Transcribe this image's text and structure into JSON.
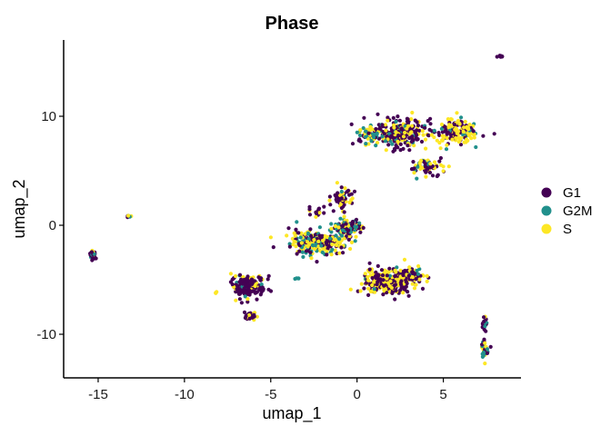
{
  "chart_data": {
    "type": "scatter",
    "title": "Phase",
    "xlabel": "umap_1",
    "ylabel": "umap_2",
    "xlim": [
      -17,
      9.5
    ],
    "ylim": [
      -14,
      17
    ],
    "x_ticks": [
      -15,
      -10,
      -5,
      0,
      5
    ],
    "x_tick_labels": [
      "-15",
      "-10",
      "-5",
      "0",
      "5"
    ],
    "y_ticks": [
      -10,
      0,
      10
    ],
    "y_tick_labels": [
      "-10",
      "0",
      "10"
    ],
    "grid": false,
    "legend_position": "right",
    "series": [
      {
        "name": "G1",
        "color": "#440154"
      },
      {
        "name": "G2M",
        "color": "#21908C"
      },
      {
        "name": "S",
        "color": "#FDE725"
      }
    ],
    "clusters": [
      {
        "center": [
          8.3,
          15.5
        ],
        "spread": [
          0.15,
          0.12
        ],
        "count": 8,
        "mix": [
          1,
          0,
          0
        ]
      },
      {
        "center": [
          2.4,
          8.5
        ],
        "spread": [
          1.3,
          1.1
        ],
        "count": 260,
        "mix": [
          0.55,
          0.12,
          0.33
        ]
      },
      {
        "center": [
          5.6,
          8.6
        ],
        "spread": [
          1.2,
          0.9
        ],
        "count": 180,
        "mix": [
          0.35,
          0.1,
          0.55
        ]
      },
      {
        "center": [
          0.6,
          8.2
        ],
        "spread": [
          0.7,
          0.7
        ],
        "count": 60,
        "mix": [
          0.3,
          0.35,
          0.35
        ]
      },
      {
        "center": [
          4.0,
          5.5
        ],
        "spread": [
          0.8,
          0.6
        ],
        "count": 70,
        "mix": [
          0.5,
          0.1,
          0.4
        ]
      },
      {
        "center": [
          -13.2,
          0.8
        ],
        "spread": [
          0.15,
          0.1
        ],
        "count": 8,
        "mix": [
          0.4,
          0.2,
          0.4
        ]
      },
      {
        "center": [
          -15.3,
          -2.7
        ],
        "spread": [
          0.25,
          0.3
        ],
        "count": 25,
        "mix": [
          0.75,
          0.05,
          0.2
        ]
      },
      {
        "center": [
          -2.2,
          -1.6
        ],
        "spread": [
          1.4,
          0.9
        ],
        "count": 260,
        "mix": [
          0.3,
          0.25,
          0.45
        ]
      },
      {
        "center": [
          -0.5,
          -0.2
        ],
        "spread": [
          0.7,
          0.6
        ],
        "count": 120,
        "mix": [
          0.4,
          0.3,
          0.3
        ]
      },
      {
        "center": [
          -0.8,
          2.6
        ],
        "spread": [
          0.5,
          0.9
        ],
        "count": 50,
        "mix": [
          0.7,
          0.05,
          0.25
        ]
      },
      {
        "center": [
          -2.3,
          1.3
        ],
        "spread": [
          0.35,
          0.4
        ],
        "count": 20,
        "mix": [
          0.8,
          0,
          0.2
        ]
      },
      {
        "center": [
          1.8,
          -5.2
        ],
        "spread": [
          1.2,
          1.0
        ],
        "count": 300,
        "mix": [
          0.5,
          0.05,
          0.45
        ]
      },
      {
        "center": [
          3.2,
          -4.6
        ],
        "spread": [
          0.6,
          0.5
        ],
        "count": 60,
        "mix": [
          0.55,
          0.05,
          0.4
        ]
      },
      {
        "center": [
          -6.3,
          -5.6
        ],
        "spread": [
          0.8,
          0.9
        ],
        "count": 170,
        "mix": [
          0.82,
          0.03,
          0.15
        ]
      },
      {
        "center": [
          -6.2,
          -8.3
        ],
        "spread": [
          0.3,
          0.4
        ],
        "count": 25,
        "mix": [
          0.8,
          0,
          0.2
        ]
      },
      {
        "center": [
          -8.2,
          -6.2
        ],
        "spread": [
          0.1,
          0.1
        ],
        "count": 3,
        "mix": [
          0.4,
          0,
          0.6
        ]
      },
      {
        "center": [
          -3.5,
          -4.9
        ],
        "spread": [
          0.1,
          0.08
        ],
        "count": 4,
        "mix": [
          0.3,
          0.7,
          0
        ]
      },
      {
        "center": [
          7.4,
          -9.0
        ],
        "spread": [
          0.1,
          0.6
        ],
        "count": 20,
        "mix": [
          0.7,
          0.1,
          0.2
        ]
      },
      {
        "center": [
          7.4,
          -11.5
        ],
        "spread": [
          0.15,
          0.7
        ],
        "count": 30,
        "mix": [
          0.3,
          0.3,
          0.4
        ]
      }
    ]
  }
}
